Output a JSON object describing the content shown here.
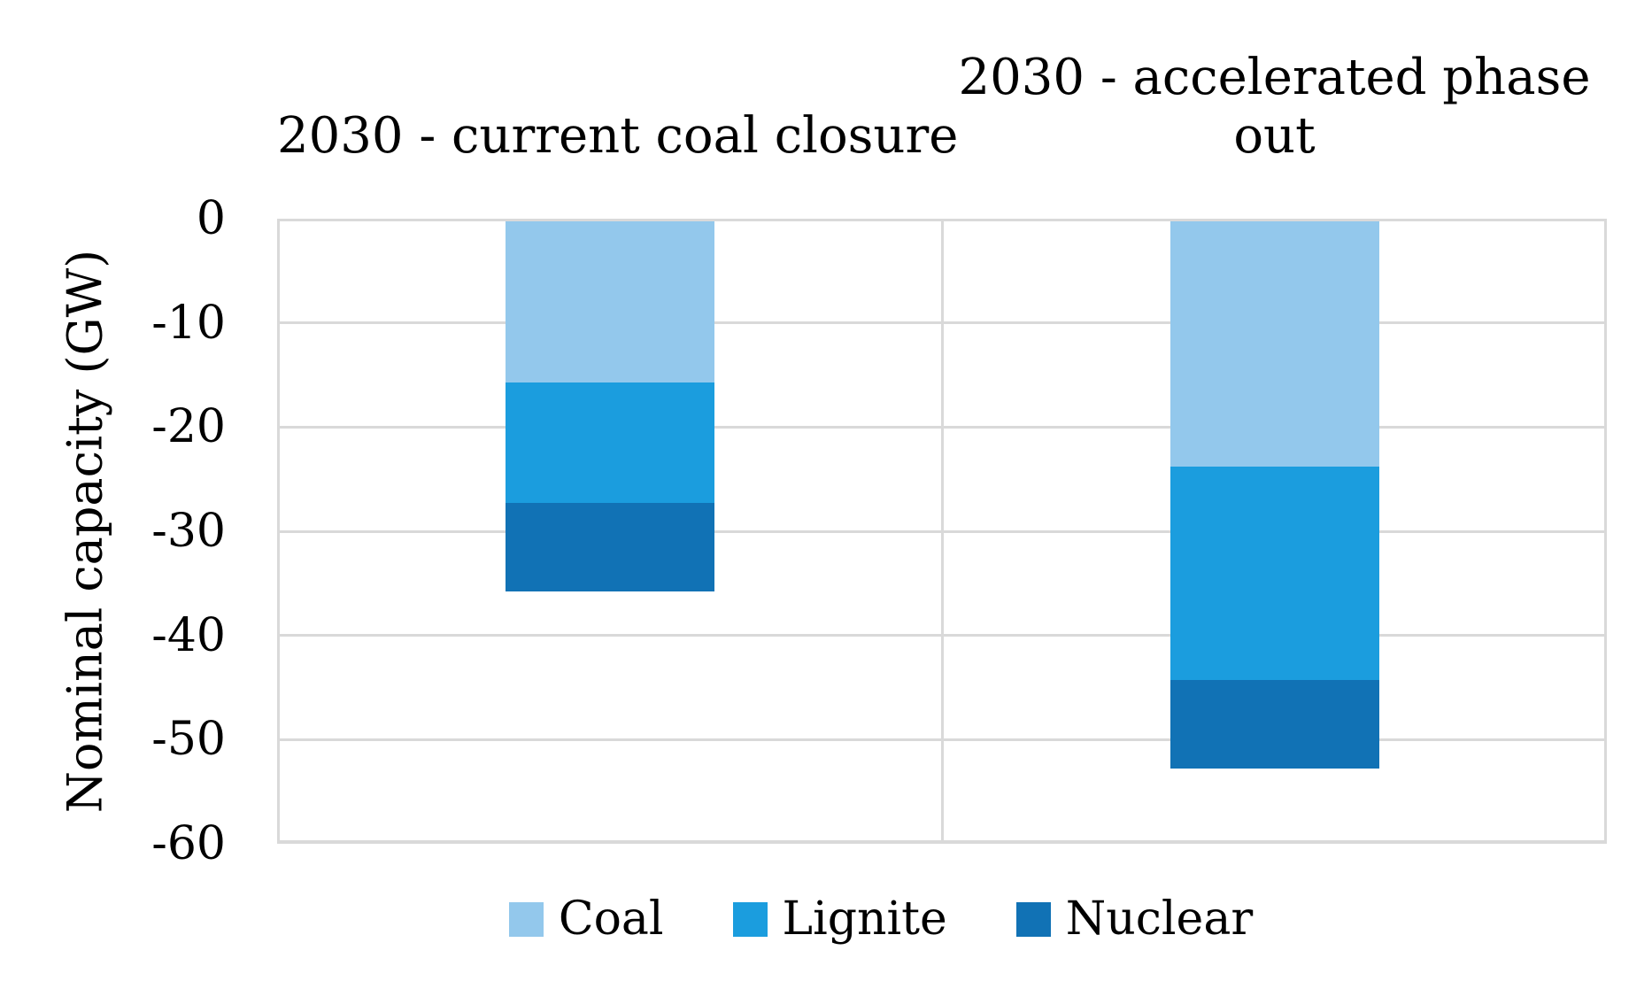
{
  "chart_data": {
    "type": "bar",
    "stacked": true,
    "direction": "negative",
    "categories": [
      "2030 - current coal closure",
      "2030 - accelerated phase out"
    ],
    "series": [
      {
        "name": "Coal",
        "color": "#93C8EC",
        "values": [
          -15.5,
          -23.5
        ]
      },
      {
        "name": "Lignite",
        "color": "#1B9DDE",
        "values": [
          -11.5,
          -20.5
        ]
      },
      {
        "name": "Nuclear",
        "color": "#1172B5",
        "values": [
          -8.5,
          -8.5
        ]
      }
    ],
    "totals": [
      -35.5,
      -52.5
    ],
    "xlabel": "",
    "ylabel": "Nominal capacity (GW)",
    "ylim": [
      -60,
      0
    ],
    "yticks": [
      0,
      -10,
      -20,
      -30,
      -40,
      -50,
      -60
    ],
    "grid": "horizontal",
    "gridline_color": "#D9D9D9",
    "legend_position": "bottom",
    "legend_labels": [
      "Coal",
      "Lignite",
      "Nuclear"
    ],
    "text_color": "#000000",
    "background_color": "#FFFFFF"
  }
}
